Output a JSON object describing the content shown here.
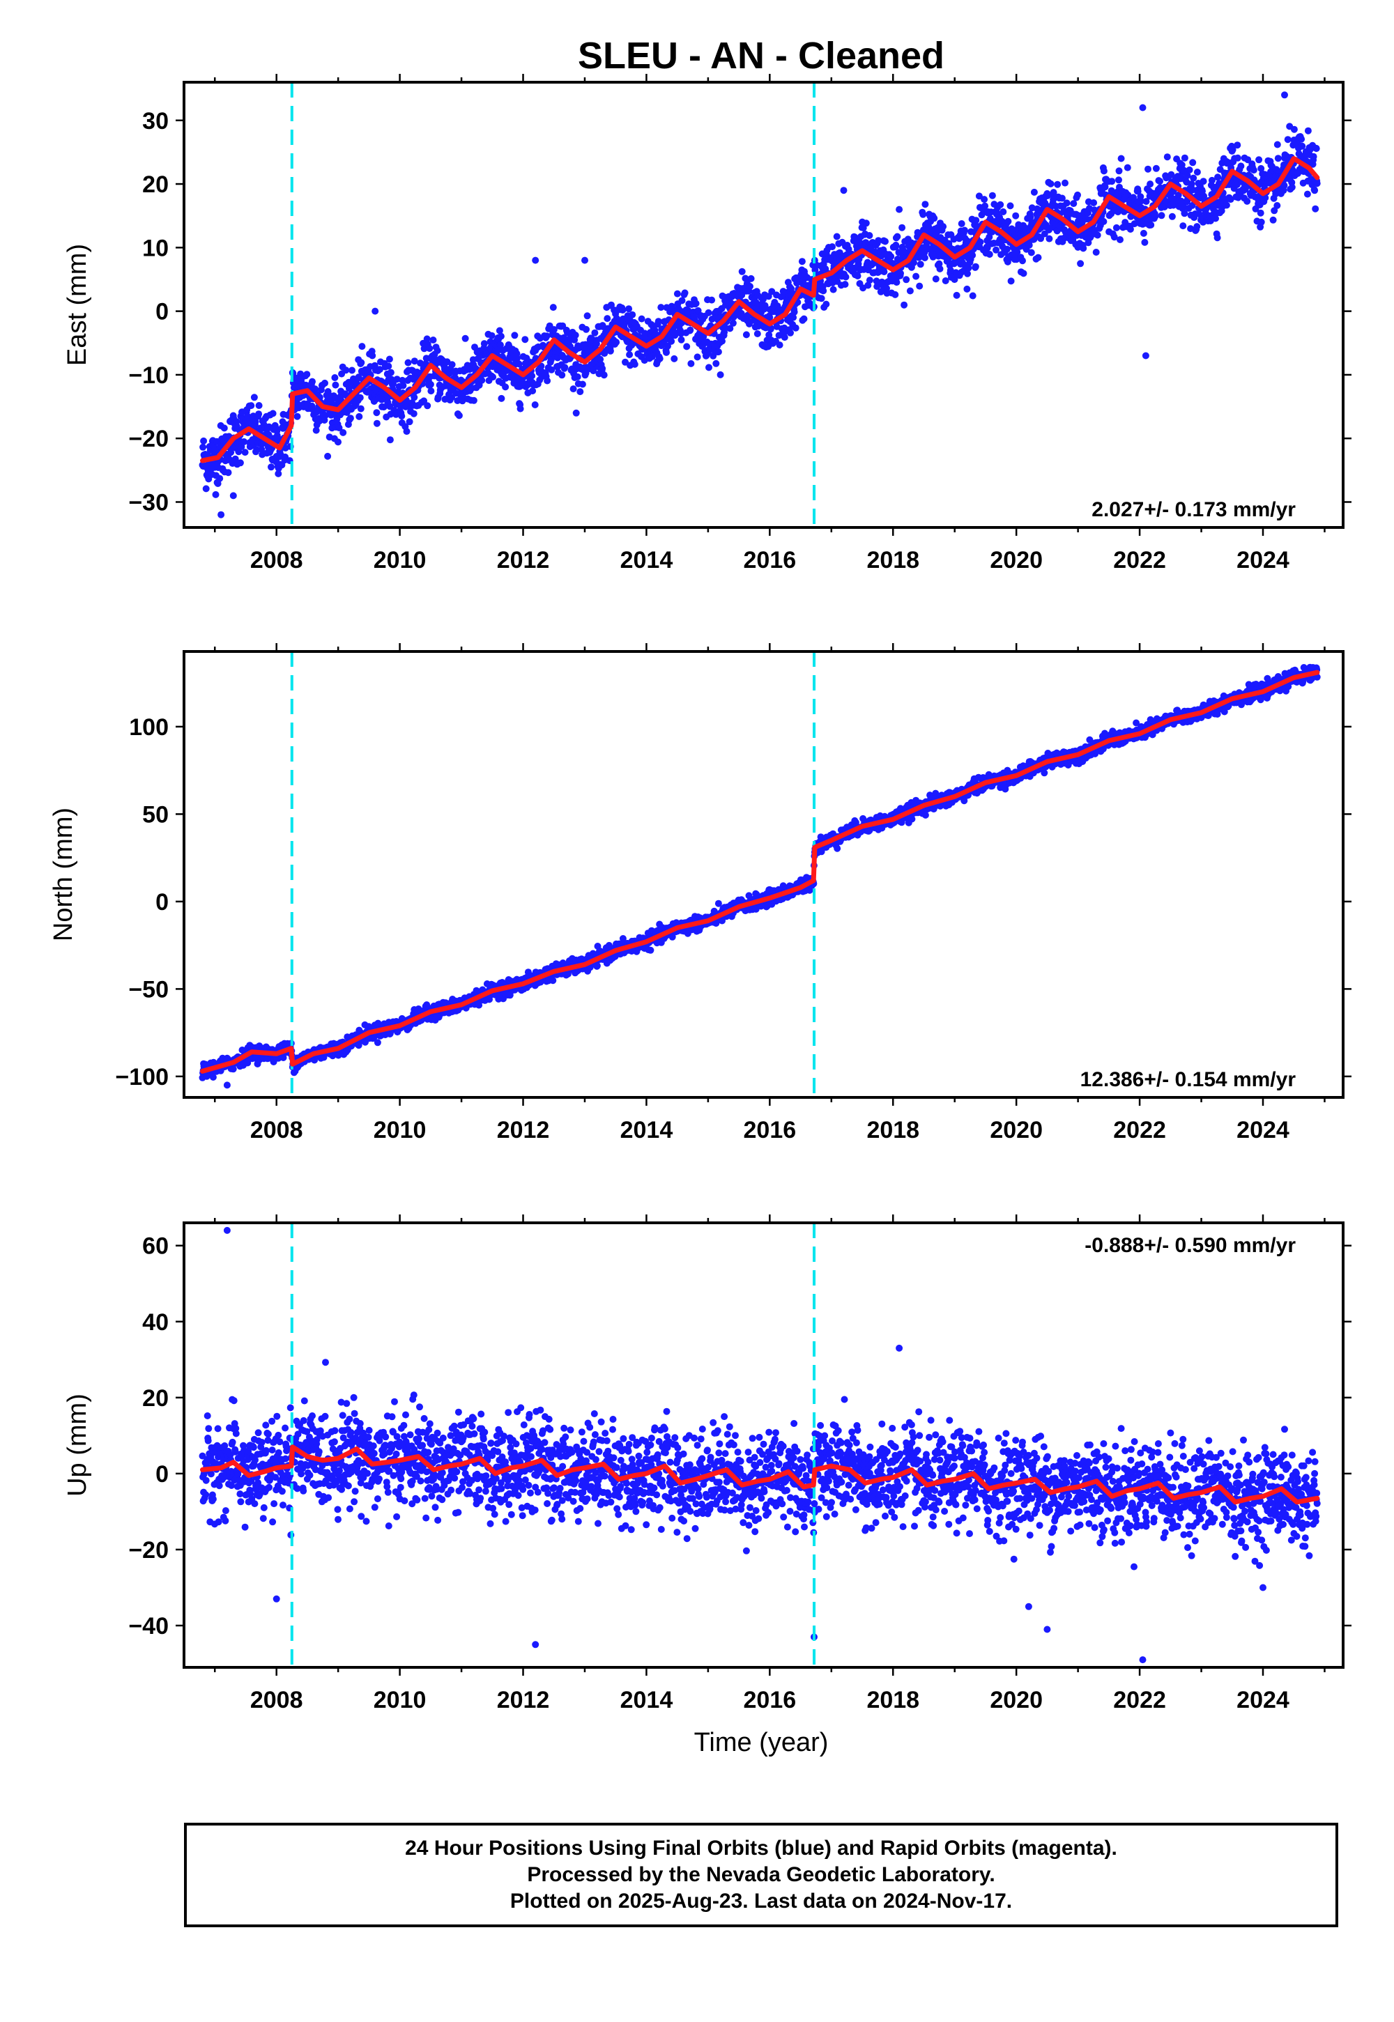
{
  "title": "SLEU  - AN - Cleaned",
  "xlabel": "Time (year)",
  "footer": {
    "line1": "24 Hour Positions Using Final Orbits (blue) and Rapid Orbits (magenta).",
    "line2": "Processed by the Nevada Geodetic Laboratory.",
    "line3": "Plotted on 2025-Aug-23. Last data on 2024-Nov-17."
  },
  "colors": {
    "data": "#1a1aff",
    "fit": "#ff1a1a",
    "offset": "#00e5ee"
  },
  "chart_data": [
    {
      "type": "scatter",
      "ylabel": "East (mm)",
      "rate_text": "2.027+/- 0.173 mm/yr",
      "xlim": [
        2006.5,
        2025.3
      ],
      "ylim": [
        -34,
        36
      ],
      "xticks": [
        "2008",
        "2010",
        "2012",
        "2014",
        "2016",
        "2018",
        "2020",
        "2022",
        "2024"
      ],
      "yticks": [
        "−30",
        "−20",
        "−10",
        "0",
        "10",
        "20",
        "30"
      ],
      "ytick_values": [
        -30,
        -20,
        -10,
        0,
        10,
        20,
        30
      ],
      "offsets": [
        2008.25,
        2016.72
      ],
      "series": [
        {
          "role": "fit",
          "x": [
            2006.8,
            2007.05,
            2007.3,
            2007.55,
            2007.8,
            2008.05,
            2008.24,
            2008.26,
            2008.5,
            2008.75,
            2009.0,
            2009.25,
            2009.5,
            2009.75,
            2010.0,
            2010.25,
            2010.5,
            2010.75,
            2011.0,
            2011.25,
            2011.5,
            2011.75,
            2012.0,
            2012.25,
            2012.5,
            2012.75,
            2013.0,
            2013.25,
            2013.5,
            2013.75,
            2014.0,
            2014.25,
            2014.5,
            2014.75,
            2015.0,
            2015.25,
            2015.5,
            2015.75,
            2016.0,
            2016.25,
            2016.5,
            2016.71,
            2016.73,
            2017.0,
            2017.25,
            2017.5,
            2017.75,
            2018.0,
            2018.25,
            2018.5,
            2018.75,
            2019.0,
            2019.25,
            2019.5,
            2019.75,
            2020.0,
            2020.25,
            2020.5,
            2020.75,
            2021.0,
            2021.25,
            2021.5,
            2021.75,
            2022.0,
            2022.25,
            2022.5,
            2022.75,
            2023.0,
            2023.25,
            2023.5,
            2023.75,
            2024.0,
            2024.25,
            2024.5,
            2024.75,
            2024.88
          ],
          "y": [
            -23.5,
            -23,
            -20,
            -18.5,
            -20,
            -21.5,
            -18,
            -13,
            -12.5,
            -15,
            -15.5,
            -13,
            -10.5,
            -12,
            -14,
            -12,
            -8.5,
            -10.5,
            -12,
            -10,
            -7,
            -8.5,
            -10,
            -8,
            -4.5,
            -6.5,
            -8,
            -6,
            -2.5,
            -4,
            -5.5,
            -4,
            -0.5,
            -2,
            -3.5,
            -1.5,
            1.5,
            -0.5,
            -2,
            -0.5,
            3.5,
            2.5,
            5,
            6,
            8,
            9.5,
            8,
            6.5,
            8,
            12,
            10.5,
            8.5,
            10,
            14,
            12.5,
            10.5,
            12,
            16,
            14.5,
            12.5,
            14,
            18,
            16.5,
            15,
            16.5,
            20,
            18.5,
            16.5,
            18,
            22,
            20.5,
            18.5,
            20,
            24,
            22.5,
            21
          ]
        }
      ]
    },
    {
      "type": "scatter",
      "ylabel": "North (mm)",
      "rate_text": "12.386+/- 0.154 mm/yr",
      "xlim": [
        2006.5,
        2025.3
      ],
      "ylim": [
        -112,
        143
      ],
      "xticks": [
        "2008",
        "2010",
        "2012",
        "2014",
        "2016",
        "2018",
        "2020",
        "2022",
        "2024"
      ],
      "yticks": [
        "−100",
        "−50",
        "0",
        "50",
        "100"
      ],
      "ytick_values": [
        -100,
        -50,
        0,
        50,
        100
      ],
      "offsets": [
        2008.25,
        2016.72
      ],
      "series": [
        {
          "role": "fit",
          "x": [
            2006.8,
            2007.3,
            2007.6,
            2008.0,
            2008.24,
            2008.26,
            2008.6,
            2009.0,
            2009.5,
            2010.0,
            2010.5,
            2011.0,
            2011.5,
            2012.0,
            2012.5,
            2013.0,
            2013.5,
            2014.0,
            2014.5,
            2015.0,
            2015.5,
            2016.0,
            2016.5,
            2016.71,
            2016.73,
            2017.0,
            2017.5,
            2018.0,
            2018.5,
            2019.0,
            2019.5,
            2020.0,
            2020.5,
            2021.0,
            2021.5,
            2022.0,
            2022.5,
            2023.0,
            2023.5,
            2024.0,
            2024.5,
            2024.88
          ],
          "y": [
            -97,
            -92,
            -86,
            -87,
            -84,
            -93,
            -87,
            -84,
            -75,
            -71,
            -63,
            -59,
            -51,
            -47,
            -40,
            -36,
            -28,
            -23,
            -15,
            -11,
            -3,
            2,
            8,
            12,
            31,
            35,
            43,
            47,
            55,
            60,
            68,
            72,
            80,
            84,
            92,
            96,
            104,
            108,
            116,
            120,
            128,
            131
          ]
        }
      ]
    },
    {
      "type": "scatter",
      "ylabel": "Up (mm)",
      "rate_text": "-0.888+/- 0.590 mm/yr",
      "xlim": [
        2006.5,
        2025.3
      ],
      "ylim": [
        -51,
        66
      ],
      "xticks": [
        "2008",
        "2010",
        "2012",
        "2014",
        "2016",
        "2018",
        "2020",
        "2022",
        "2024"
      ],
      "yticks": [
        "−40",
        "−20",
        "0",
        "20",
        "40",
        "60"
      ],
      "ytick_values": [
        -40,
        -20,
        0,
        20,
        40,
        60
      ],
      "offsets": [
        2008.25,
        2016.72
      ],
      "series": [
        {
          "role": "fit",
          "x": [
            2006.8,
            2007.1,
            2007.3,
            2007.55,
            2007.8,
            2008.0,
            2008.24,
            2008.26,
            2008.5,
            2008.75,
            2009.0,
            2009.3,
            2009.55,
            2009.8,
            2010.0,
            2010.3,
            2010.55,
            2010.8,
            2011.0,
            2011.3,
            2011.55,
            2011.8,
            2012.0,
            2012.3,
            2012.55,
            2012.8,
            2013.0,
            2013.3,
            2013.55,
            2013.8,
            2014.0,
            2014.3,
            2014.55,
            2014.8,
            2015.0,
            2015.3,
            2015.55,
            2015.8,
            2016.0,
            2016.3,
            2016.55,
            2016.71,
            2016.73,
            2017.0,
            2017.3,
            2017.55,
            2017.8,
            2018.0,
            2018.3,
            2018.55,
            2018.8,
            2019.0,
            2019.3,
            2019.55,
            2019.8,
            2020.0,
            2020.3,
            2020.55,
            2020.8,
            2021.0,
            2021.3,
            2021.55,
            2021.8,
            2022.0,
            2022.3,
            2022.55,
            2022.8,
            2023.0,
            2023.3,
            2023.55,
            2023.8,
            2024.0,
            2024.3,
            2024.55,
            2024.88
          ],
          "y": [
            1,
            1.5,
            3,
            -0.5,
            0.5,
            1.5,
            2,
            7,
            4.5,
            3.5,
            4,
            6.5,
            2.5,
            3,
            3.5,
            4.5,
            1,
            2,
            2.5,
            4,
            0,
            1.5,
            2,
            3.5,
            -0.5,
            1,
            1.5,
            2.5,
            -1.5,
            -0.5,
            0,
            2,
            -2.5,
            -1.5,
            -0.5,
            1,
            -3,
            -2,
            -1.5,
            0.5,
            -3.5,
            -3,
            1,
            2,
            1,
            -2.5,
            -1.5,
            -1,
            1,
            -3,
            -2,
            -1.5,
            0,
            -4,
            -3,
            -2.5,
            -1.5,
            -5,
            -4,
            -3.5,
            -2,
            -6,
            -4.5,
            -4,
            -2.5,
            -6.5,
            -5.5,
            -5,
            -3.5,
            -7.5,
            -6.5,
            -6,
            -4,
            -7.5,
            -6.5
          ]
        }
      ]
    }
  ]
}
